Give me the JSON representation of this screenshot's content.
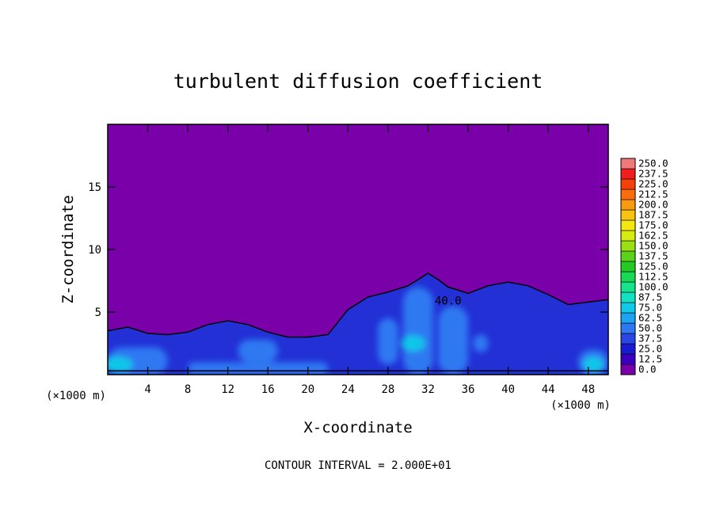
{
  "chart_data": {
    "type": "heatmap",
    "title": "turbulent diffusion coefficient",
    "xlabel": "X-coordinate",
    "ylabel": "Z-coordinate",
    "x_unit": "(×1000 m)",
    "y_unit": "(×1000 m)",
    "xlim": [
      0,
      50
    ],
    "ylim": [
      0,
      20
    ],
    "x_ticks": [
      4,
      8,
      12,
      16,
      20,
      24,
      28,
      32,
      36,
      40,
      44,
      48
    ],
    "y_ticks": [
      5,
      10,
      15
    ],
    "footnote": "CONTOUR INTERVAL = 2.000E+01",
    "contour_label": "40.0",
    "contour_label_at": [
      34,
      5.6
    ],
    "colorbar": {
      "levels": [
        "0.0",
        "12.5",
        "25.0",
        "37.5",
        "50.0",
        "62.5",
        "75.0",
        "87.5",
        "100.0",
        "112.5",
        "125.0",
        "137.5",
        "150.0",
        "162.5",
        "175.0",
        "187.5",
        "200.0",
        "212.5",
        "225.0",
        "237.5",
        "250.0"
      ],
      "colors": [
        "#7a00aa",
        "#3c00c0",
        "#1a1ad2",
        "#2a46e6",
        "#2e78f2",
        "#1ea2f2",
        "#10c8e8",
        "#12e2c2",
        "#16e48c",
        "#18d856",
        "#24ca24",
        "#5ad21a",
        "#9ce014",
        "#d6ec12",
        "#f4e610",
        "#f8c414",
        "#fa9a10",
        "#fa6c0c",
        "#f6400c",
        "#f01e1e",
        "#f07a7a"
      ]
    },
    "field_colors": {
      "background": "#7a00aa",
      "turbulent": "#2230d6",
      "strong": "#2e78f2",
      "peak": "#10c8e8"
    },
    "turbulent_layer_top": [
      [
        0,
        3.5
      ],
      [
        2,
        3.8
      ],
      [
        4,
        3.3
      ],
      [
        6,
        3.2
      ],
      [
        8,
        3.4
      ],
      [
        10,
        4.0
      ],
      [
        12,
        4.3
      ],
      [
        14,
        4.0
      ],
      [
        16,
        3.4
      ],
      [
        18,
        3.0
      ],
      [
        20,
        3.0
      ],
      [
        22,
        3.2
      ],
      [
        24,
        5.2
      ],
      [
        26,
        6.2
      ],
      [
        28,
        6.6
      ],
      [
        30,
        7.1
      ],
      [
        31,
        7.6
      ],
      [
        32,
        8.1
      ],
      [
        33,
        7.6
      ],
      [
        34,
        7.0
      ],
      [
        36,
        6.5
      ],
      [
        38,
        7.1
      ],
      [
        40,
        7.4
      ],
      [
        42,
        7.1
      ],
      [
        44,
        6.4
      ],
      [
        46,
        5.6
      ],
      [
        48,
        5.8
      ],
      [
        50,
        6.0
      ]
    ],
    "strong_features": [
      {
        "x": [
          0,
          6
        ],
        "z": [
          0,
          2.2
        ]
      },
      {
        "x": [
          8,
          22
        ],
        "z": [
          0,
          1.0
        ]
      },
      {
        "x": [
          13,
          17
        ],
        "z": [
          1.0,
          2.8
        ]
      },
      {
        "x": [
          27,
          29
        ],
        "z": [
          0.8,
          4.5
        ]
      },
      {
        "x": [
          29.5,
          32.5
        ],
        "z": [
          0,
          7.0
        ]
      },
      {
        "x": [
          33,
          36
        ],
        "z": [
          0,
          5.5
        ]
      },
      {
        "x": [
          36.5,
          38
        ],
        "z": [
          1.8,
          3.2
        ]
      },
      {
        "x": [
          47,
          50
        ],
        "z": [
          0,
          2.0
        ]
      }
    ]
  }
}
